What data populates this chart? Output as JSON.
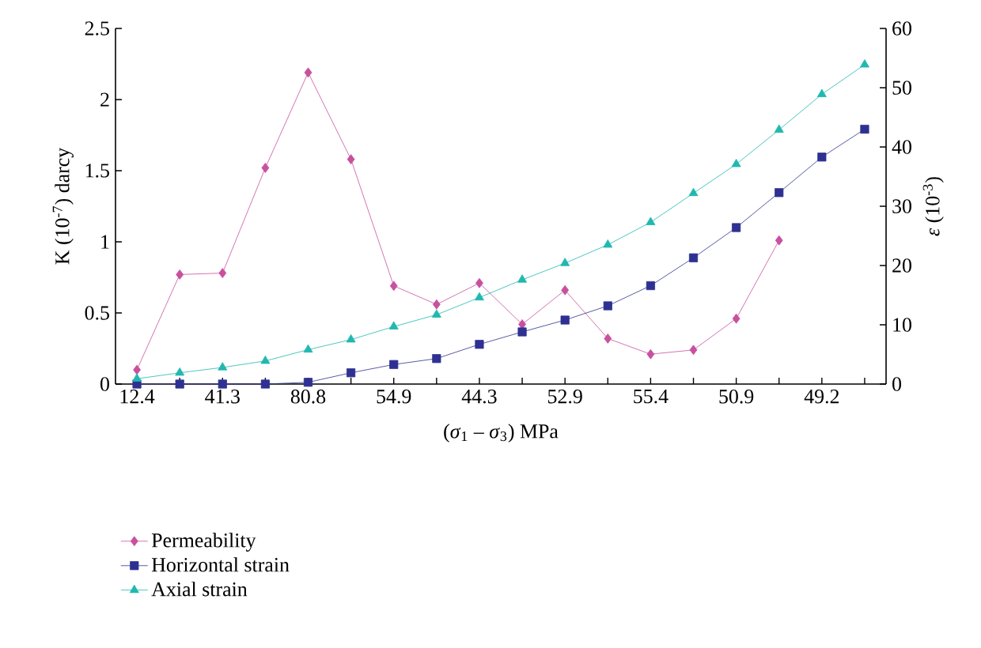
{
  "chart_data": {
    "type": "line",
    "xlabel": "(*σ*$_{1}$ – *σ*$_{3}$) MPa",
    "ylabel": "K (10$^{-7}$) darcy",
    "y2label": "*ε* (10$^{-3}$)",
    "categories": [
      "12.4",
      null,
      "41.3",
      null,
      "80.8",
      null,
      "54.9",
      null,
      "44.3",
      null,
      "52.9",
      null,
      "55.4",
      null,
      "50.9",
      null,
      "49.2",
      null
    ],
    "ylim": [
      0,
      2.5
    ],
    "yticks": [
      0,
      0.5,
      1,
      1.5,
      2,
      2.5
    ],
    "y2lim": [
      0,
      60
    ],
    "y2ticks": [
      0,
      10,
      20,
      30,
      40,
      50,
      60
    ],
    "legend": "bottom left",
    "grid": false,
    "series": [
      {
        "name": "Permeability",
        "color": "#c8509f",
        "marker": "diamond",
        "values": [
          0.1,
          0.77,
          0.78,
          1.52,
          2.19,
          1.58,
          0.69,
          0.56,
          0.71,
          0.42,
          0.66,
          0.32,
          0.21,
          0.24,
          0.46,
          1.01,
          null,
          null
        ]
      },
      {
        "name": "Horizontal strain",
        "color": "#2e3192",
        "marker": "square",
        "axis": "y2",
        "values": [
          0,
          0,
          0,
          0,
          0.3,
          1.9,
          3.3,
          4.3,
          6.7,
          8.8,
          10.8,
          13.2,
          16.6,
          21.3,
          26.4,
          32.3,
          38.3,
          43.0
        ]
      },
      {
        "name": "Axial strain",
        "color": "#20b8b0",
        "marker": "triangle",
        "axis": "y2",
        "values": [
          0.9,
          1.9,
          2.8,
          3.9,
          5.8,
          7.5,
          9.7,
          11.7,
          14.6,
          17.6,
          20.4,
          23.5,
          27.3,
          32.2,
          37.1,
          42.9,
          48.9,
          53.9
        ]
      }
    ]
  }
}
